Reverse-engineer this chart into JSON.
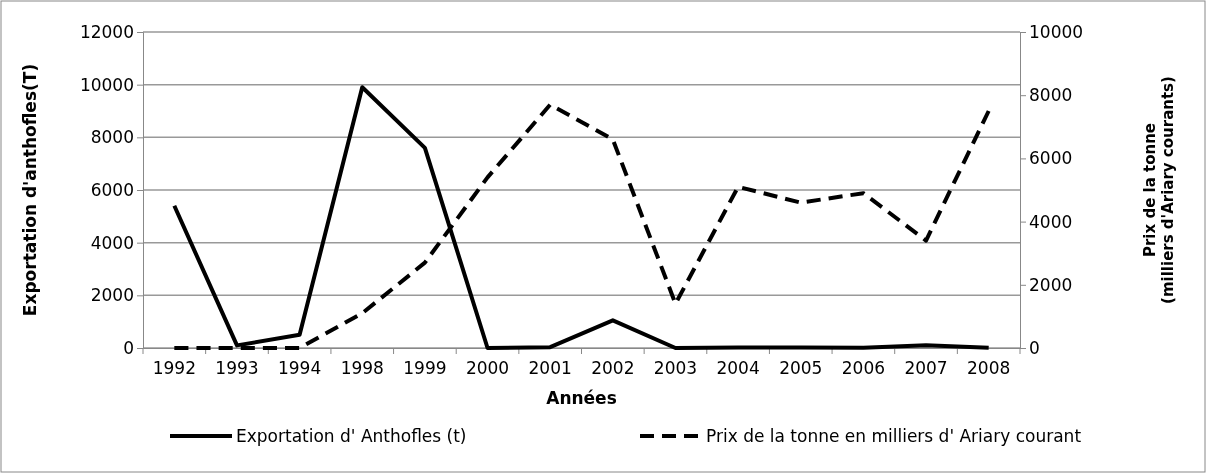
{
  "chart_data": {
    "type": "line",
    "xlabel": "Années",
    "ylabel": "Exportation d'anthofles(T)",
    "y2label": "Prix de la tonne (milliers d'Ariary courants)",
    "categories": [
      "1992",
      "1993",
      "1994",
      "1998",
      "1999",
      "2000",
      "2001",
      "2002",
      "2003",
      "2004",
      "2005",
      "2006",
      "2007",
      "2008"
    ],
    "series": [
      {
        "name": "Exportation d' Anthofles (t)",
        "color": "#000000",
        "line_style": "solid",
        "values": [
          5400,
          100,
          500,
          9900,
          7600,
          0,
          30,
          1050,
          0,
          20,
          20,
          10,
          100,
          10
        ]
      },
      {
        "name": "Prix de la tonne en milliers d' Ariary courant",
        "color": "#000000",
        "line_style": "dashed",
        "axis": "y2",
        "values": [
          0,
          0,
          0,
          1100,
          2700,
          5400,
          7700,
          6600,
          1400,
          5100,
          4600,
          4900,
          3400,
          7500
        ]
      }
    ],
    "ylim": [
      0,
      12000
    ],
    "yticks": [
      0,
      2000,
      4000,
      6000,
      8000,
      10000,
      12000
    ],
    "y2lim": [
      0,
      10000
    ],
    "y2ticks": [
      0,
      2000,
      4000,
      6000,
      8000,
      10000
    ],
    "grid": "y",
    "legend": "bottom",
    "marker": "none"
  }
}
